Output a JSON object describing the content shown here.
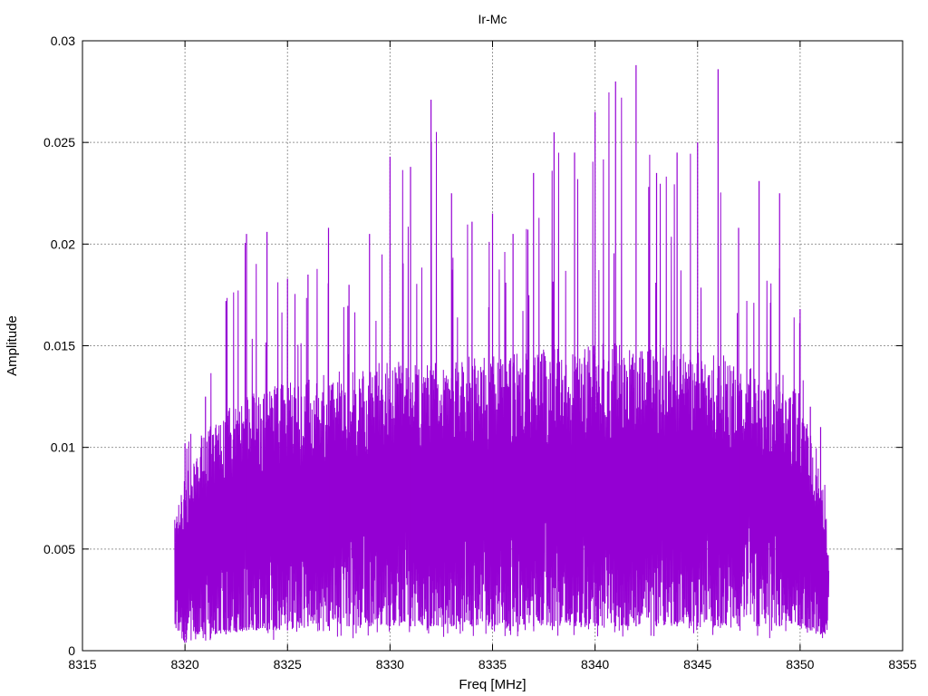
{
  "chart_data": {
    "type": "line",
    "title": "Ir-Mc",
    "xlabel": "Freq [MHz]",
    "ylabel": "Amplitude",
    "xlim": [
      8315,
      8355
    ],
    "ylim": [
      0,
      0.03
    ],
    "xticks": [
      "8315",
      "8320",
      "8325",
      "8330",
      "8335",
      "8340",
      "8345",
      "8350",
      "8355"
    ],
    "yticks": [
      "0",
      "0.005",
      "0.01",
      "0.015",
      "0.02",
      "0.025",
      "0.03"
    ],
    "grid": true,
    "series": [
      {
        "color": "#9400d3",
        "x_range": [
          8319.5,
          8351.4
        ],
        "envelope": {
          "x": [
            8319.5,
            8320,
            8321,
            8322,
            8323,
            8324,
            8325,
            8326,
            8327,
            8328,
            8329,
            8330,
            8331,
            8332,
            8333,
            8334,
            8335,
            8336,
            8337,
            8338,
            8339,
            8340,
            8341,
            8342,
            8343,
            8344,
            8345,
            8346,
            8347,
            8348,
            8349,
            8350,
            8350.5,
            8351,
            8351.4
          ],
          "peak": [
            0.0068,
            0.0102,
            0.0125,
            0.0172,
            0.0205,
            0.0206,
            0.0183,
            0.0185,
            0.0208,
            0.018,
            0.0205,
            0.0243,
            0.0238,
            0.0271,
            0.0225,
            0.0211,
            0.0215,
            0.0205,
            0.0235,
            0.0255,
            0.0245,
            0.0265,
            0.028,
            0.0288,
            0.0235,
            0.0245,
            0.025,
            0.0286,
            0.0208,
            0.0231,
            0.0225,
            0.0168,
            0.012,
            0.011,
            0.006
          ],
          "upper": [
            0.006,
            0.008,
            0.01,
            0.0108,
            0.0115,
            0.0118,
            0.012,
            0.0122,
            0.0125,
            0.0125,
            0.0128,
            0.013,
            0.013,
            0.013,
            0.013,
            0.0132,
            0.0132,
            0.0133,
            0.0135,
            0.0135,
            0.0135,
            0.0137,
            0.0138,
            0.0138,
            0.0137,
            0.0135,
            0.0135,
            0.0133,
            0.013,
            0.0128,
            0.0125,
            0.0118,
            0.01,
            0.0085,
            0.005
          ],
          "lower": [
            0.0008,
            0.0008,
            0.0008,
            0.0008,
            0.001,
            0.001,
            0.001,
            0.0012,
            0.0012,
            0.0012,
            0.0012,
            0.0012,
            0.0012,
            0.0012,
            0.0012,
            0.0012,
            0.0012,
            0.0012,
            0.0012,
            0.0012,
            0.0012,
            0.0012,
            0.0012,
            0.0012,
            0.0012,
            0.0012,
            0.0012,
            0.0012,
            0.0012,
            0.0012,
            0.0012,
            0.0012,
            0.001,
            0.0008,
            0.0008
          ]
        }
      }
    ]
  }
}
